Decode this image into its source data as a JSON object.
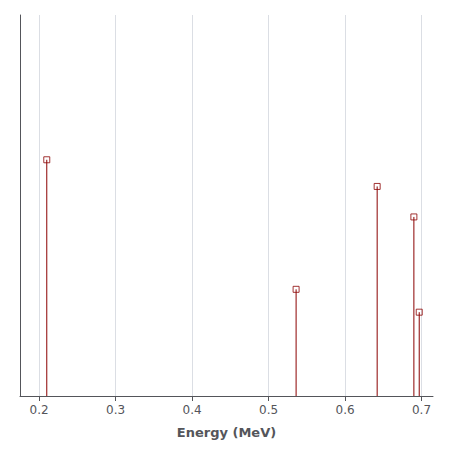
{
  "chart_data": {
    "type": "stem",
    "xlabel": "Energy (MeV)",
    "x": [
      0.21,
      0.536,
      0.642,
      0.69,
      0.697
    ],
    "values": [
      0.62,
      0.28,
      0.55,
      0.47,
      0.22
    ],
    "color": "#8B0000",
    "marker": "square",
    "xlim": [
      0.175,
      0.715
    ],
    "ylim": [
      0.0,
      1.0
    ],
    "xticks": [
      0.2,
      0.3,
      0.4,
      0.5,
      0.6,
      0.7
    ],
    "yticks": [],
    "grid": true,
    "tick_labels": "x"
  }
}
